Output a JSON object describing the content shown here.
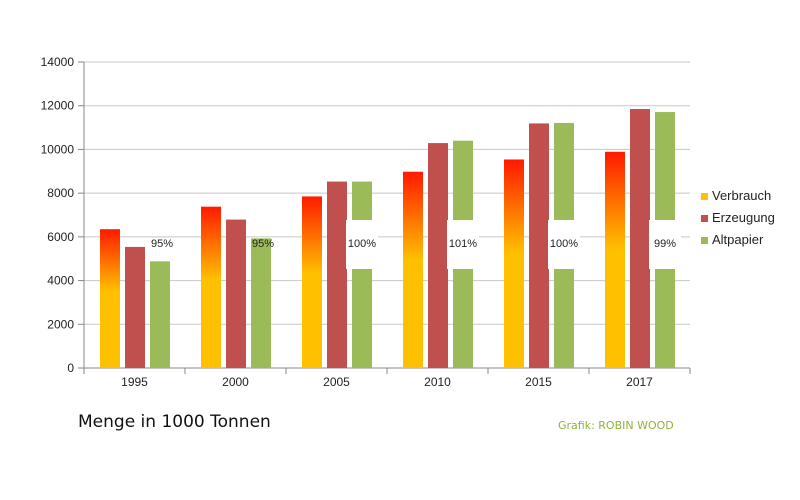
{
  "chart_data": {
    "type": "bar",
    "categories": [
      "1995",
      "2000",
      "2005",
      "2010",
      "2015",
      "2017"
    ],
    "series": [
      {
        "name": "Verbrauch",
        "values": [
          6350,
          7380,
          7850,
          8980,
          9540,
          9890
        ]
      },
      {
        "name": "Erzeugung",
        "values": [
          5540,
          6790,
          8530,
          10290,
          11190,
          11850
        ]
      },
      {
        "name": "Altpapier",
        "values": [
          4880,
          5930,
          8530,
          10400,
          11210,
          11710
        ]
      }
    ],
    "data_labels": [
      "95%",
      "95%",
      "100%",
      "101%",
      "100%",
      "99%"
    ],
    "ylim": [
      0,
      14000
    ],
    "yticks": [
      "0",
      "2000",
      "4000",
      "6000",
      "8000",
      "10000",
      "12000",
      "14000"
    ],
    "grid": true,
    "legend_position": "right",
    "colors": {
      "Verbrauch_top": "#ff1a00",
      "Verbrauch_bottom": "#ffc000",
      "Erzeugung": "#c0504d",
      "Altpapier": "#9bbb59"
    }
  },
  "caption": "Menge in 1000 Tonnen",
  "credit": "Grafik: ROBIN WOOD",
  "credit_color": "#8db33a"
}
